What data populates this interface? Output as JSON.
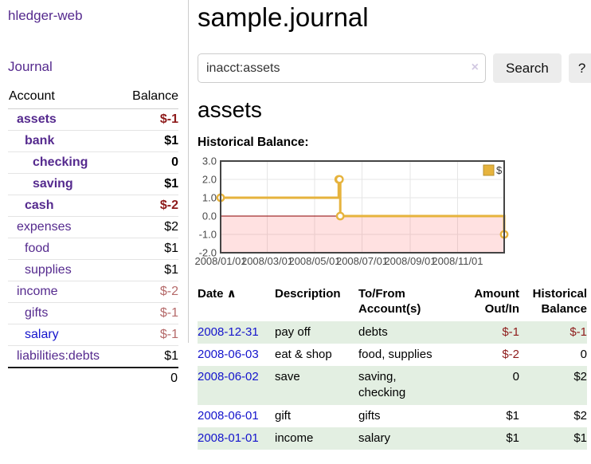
{
  "app": {
    "title": "hledger-web"
  },
  "colors": {
    "link_visited": "#552a8e",
    "link_unvisited": "#1414cc",
    "neg_strong": "#8e1b1b",
    "neg_weak": "#b56a6a",
    "row_shade_green": "#e3efe2",
    "series_gold": "#e6b33d",
    "legend_box_border": "#b8922e",
    "zero_line": "#8b0000",
    "below_zero_fill": "rgba(255,70,70,0.16)",
    "gridline": "#e6e6e6",
    "chart_frame": "#444444",
    "tick_text": "#4a4a4a"
  },
  "sidebar": {
    "journal_link": "Journal",
    "table": {
      "account_header": "Account",
      "balance_header": "Balance"
    },
    "accounts": [
      {
        "name": "assets",
        "depth": 1,
        "bold": true,
        "balance": "$-1",
        "balance_style": "neg-strong",
        "link_style": "visited"
      },
      {
        "name": "bank",
        "depth": 2,
        "bold": true,
        "balance": "$1",
        "balance_style": "",
        "link_style": "visited"
      },
      {
        "name": "checking",
        "depth": 3,
        "bold": true,
        "balance": "0",
        "balance_style": "",
        "link_style": "visited"
      },
      {
        "name": "saving",
        "depth": 3,
        "bold": true,
        "balance": "$1",
        "balance_style": "",
        "link_style": "visited"
      },
      {
        "name": "cash",
        "depth": 2,
        "bold": true,
        "balance": "$-2",
        "balance_style": "neg-strong",
        "link_style": "visited"
      },
      {
        "name": "expenses",
        "depth": 1,
        "bold": false,
        "balance": "$2",
        "balance_style": "",
        "link_style": "visited"
      },
      {
        "name": "food",
        "depth": 2,
        "bold": false,
        "balance": "$1",
        "balance_style": "",
        "link_style": "visited"
      },
      {
        "name": "supplies",
        "depth": 2,
        "bold": false,
        "balance": "$1",
        "balance_style": "",
        "link_style": "visited"
      },
      {
        "name": "income",
        "depth": 1,
        "bold": false,
        "balance": "$-2",
        "balance_style": "neg-weak",
        "link_style": "visited"
      },
      {
        "name": "gifts",
        "depth": 2,
        "bold": false,
        "balance": "$-1",
        "balance_style": "neg-weak",
        "link_style": "visited"
      },
      {
        "name": "salary",
        "depth": 2,
        "bold": false,
        "balance": "$-1",
        "balance_style": "neg-weak",
        "link_style": "unvisited"
      },
      {
        "name": "liabilities:debts",
        "depth": 1,
        "bold": false,
        "balance": "$1",
        "balance_style": "",
        "link_style": "visited"
      }
    ],
    "total": "0"
  },
  "main": {
    "title": "sample.journal",
    "search": {
      "value": "inacct:assets",
      "clear_icon": "×",
      "button_label": "Search",
      "help_label": "?"
    },
    "section_title": "assets",
    "chart_label": "Historical Balance:"
  },
  "chart_data": {
    "type": "line",
    "style": "step",
    "legend": [
      {
        "name": "$"
      }
    ],
    "legend_position": "top-right",
    "grid": true,
    "below_zero_shaded": true,
    "ylim": [
      -2,
      3
    ],
    "xlim_days": [
      0,
      365
    ],
    "y_ticks": [
      "3.0",
      "2.0",
      "1.0",
      "0.0",
      "-1.0",
      "-2.0"
    ],
    "x_ticks": [
      {
        "label": "2008/01/01",
        "day": 0
      },
      {
        "label": "2008/03/01",
        "day": 60
      },
      {
        "label": "2008/05/01",
        "day": 121
      },
      {
        "label": "2008/07/01",
        "day": 182
      },
      {
        "label": "2008/09/01",
        "day": 244
      },
      {
        "label": "2008/11/01",
        "day": 305
      }
    ],
    "series": [
      {
        "name": "$",
        "points": [
          {
            "date": "2008-01-01",
            "day": 0,
            "value": 1
          },
          {
            "date": "2008-06-01",
            "day": 152,
            "value": 2
          },
          {
            "date": "2008-06-02",
            "day": 153,
            "value": 2
          },
          {
            "date": "2008-06-03",
            "day": 154,
            "value": 0
          },
          {
            "date": "2008-12-31",
            "day": 365,
            "value": -1
          }
        ]
      }
    ]
  },
  "table": {
    "headers": [
      {
        "lines": [
          "Date"
        ],
        "sort_icon": "∧",
        "sortable": true,
        "align": "left"
      },
      {
        "lines": [
          "Description"
        ],
        "sortable": false,
        "align": "left"
      },
      {
        "lines": [
          "To/From",
          "Account(s)"
        ],
        "sortable": false,
        "align": "left"
      },
      {
        "lines": [
          "Amount",
          "Out/In"
        ],
        "sortable": false,
        "align": "right"
      },
      {
        "lines": [
          "Historical",
          "Balance"
        ],
        "sortable": false,
        "align": "right"
      }
    ],
    "rows": [
      {
        "date": "2008-12-31",
        "description": "pay off",
        "accounts": [
          "debts"
        ],
        "amount": "$-1",
        "amount_neg": true,
        "balance": "$-1",
        "balance_neg": true,
        "shaded": true
      },
      {
        "date": "2008-06-03",
        "description": "eat & shop",
        "accounts": [
          "food, supplies"
        ],
        "amount": "$-2",
        "amount_neg": true,
        "balance": "0",
        "balance_neg": false,
        "shaded": false
      },
      {
        "date": "2008-06-02",
        "description": "save",
        "accounts": [
          "saving,",
          "checking"
        ],
        "amount": "0",
        "amount_neg": false,
        "balance": "$2",
        "balance_neg": false,
        "shaded": true
      },
      {
        "date": "2008-06-01",
        "description": "gift",
        "accounts": [
          "gifts"
        ],
        "amount": "$1",
        "amount_neg": false,
        "balance": "$2",
        "balance_neg": false,
        "shaded": false
      },
      {
        "date": "2008-01-01",
        "description": "income",
        "accounts": [
          "salary"
        ],
        "amount": "$1",
        "amount_neg": false,
        "balance": "$1",
        "balance_neg": false,
        "shaded": true
      }
    ]
  }
}
